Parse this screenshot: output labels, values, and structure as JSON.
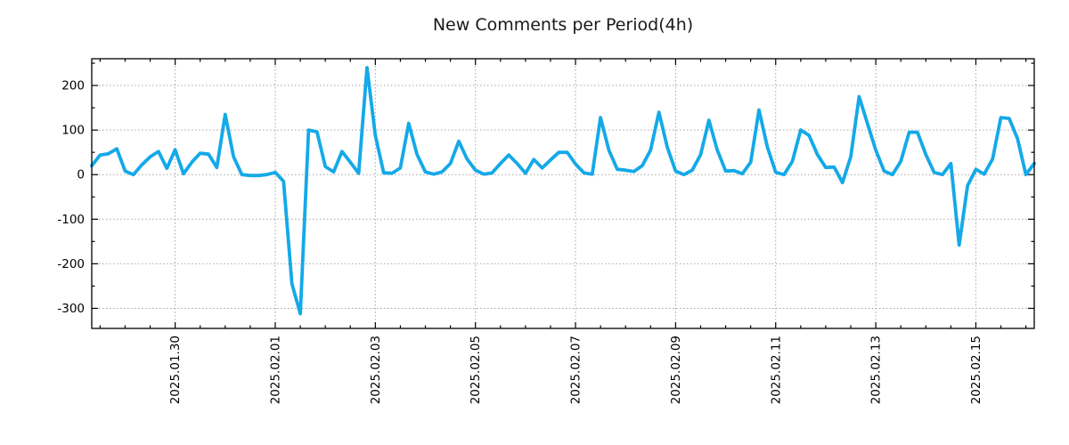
{
  "title": "New Comments per Period(4h)",
  "colors": {
    "line": "#14A9E8",
    "grid": "#a6a6a6",
    "axis": "#000000",
    "title_text": "#1a1a1a",
    "background": "#ffffff"
  },
  "chart_data": {
    "type": "line",
    "title": "New Comments per Period(4h)",
    "period_hours": 4,
    "x_start": "2025.01.28 08:00",
    "x_tick_labels": [
      "2025.01.30",
      "2025.02.01",
      "2025.02.03",
      "2025.02.05",
      "2025.02.07",
      "2025.02.09",
      "2025.02.11",
      "2025.02.13",
      "2025.02.15"
    ],
    "x_tick_indices": [
      10,
      22,
      34,
      46,
      58,
      70,
      82,
      94,
      106
    ],
    "x_minor_every_points": 3,
    "y_ticks": [
      200,
      100,
      0,
      -100,
      -200,
      -300
    ],
    "y_minor_step": 50,
    "ylim": [
      -345,
      260
    ],
    "grid": true,
    "legend": "none",
    "values": [
      20,
      44,
      47,
      58,
      8,
      0,
      22,
      40,
      52,
      14,
      56,
      2,
      28,
      48,
      46,
      16,
      135,
      40,
      0,
      -2,
      -2,
      0,
      5,
      -15,
      -245,
      -312,
      100,
      96,
      18,
      6,
      52,
      28,
      3,
      240,
      88,
      4,
      3,
      15,
      115,
      45,
      6,
      1,
      6,
      25,
      75,
      35,
      10,
      1,
      4,
      25,
      44,
      25,
      3,
      34,
      15,
      33,
      50,
      50,
      24,
      4,
      1,
      128,
      55,
      12,
      10,
      7,
      20,
      55,
      140,
      62,
      8,
      0,
      10,
      45,
      122,
      55,
      8,
      9,
      2,
      28,
      145,
      62,
      5,
      0,
      30,
      100,
      88,
      45,
      16,
      17,
      -18,
      40,
      175,
      115,
      55,
      8,
      0,
      30,
      95,
      95,
      45,
      5,
      0,
      25,
      -158,
      -25,
      12,
      1,
      35,
      128,
      126,
      80,
      0,
      25
    ]
  }
}
